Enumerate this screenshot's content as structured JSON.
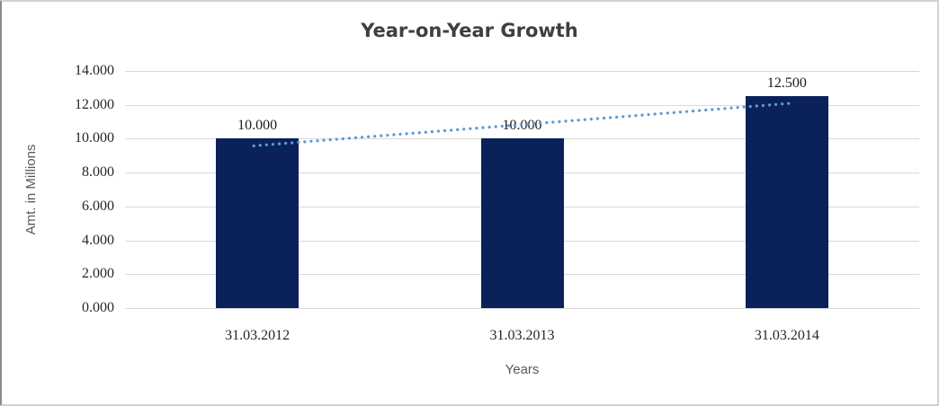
{
  "chart_data": {
    "type": "bar",
    "title": "Year-on-Year Growth",
    "xlabel": "Years",
    "ylabel": "Amt. in Millions",
    "categories": [
      "31.03.2012",
      "31.03.2013",
      "31.03.2014"
    ],
    "series": [
      {
        "name": "Amt. in Millions",
        "values": [
          10.0,
          10.0,
          12.5
        ]
      }
    ],
    "data_labels": [
      "10.000",
      "10.000",
      "12.500"
    ],
    "ylim": [
      0,
      14
    ],
    "ytick_step": 2,
    "ytick_labels": [
      "0.000",
      "2.000",
      "4.000",
      "6.000",
      "8.000",
      "10.000",
      "12.000",
      "14.000"
    ],
    "grid": true,
    "legend": "none",
    "trendline": {
      "style": "dotted",
      "start_value": 9.58,
      "end_value": 12.08
    },
    "colors": {
      "bar": "#0b2159",
      "trend": "#5b9bd5",
      "grid": "#d9d9d9",
      "title_text": "#3f3f3f",
      "axis_title_text": "#595959",
      "tick_text": "#262626",
      "data_label_text": "#1a1a1a"
    }
  }
}
